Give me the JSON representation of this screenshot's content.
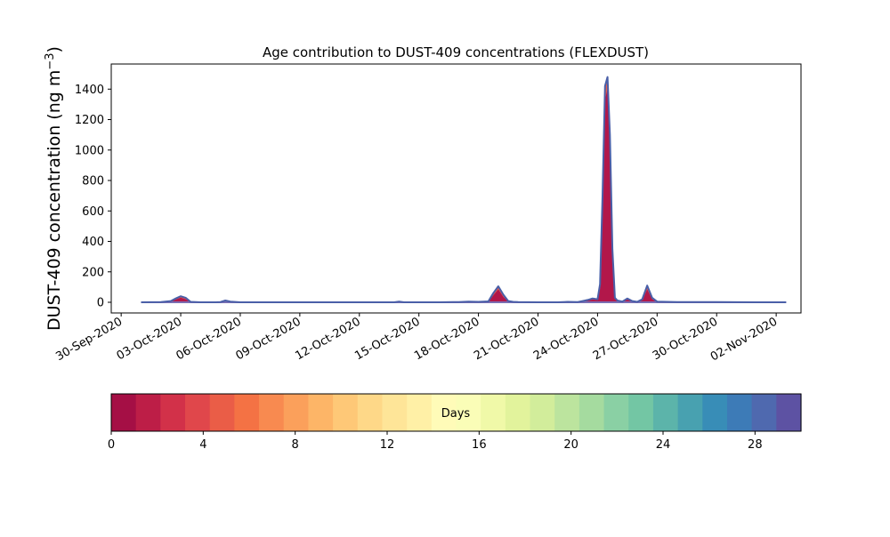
{
  "chart_data": {
    "type": "area",
    "title": "Age contribution to DUST-409 concentrations (FLEXDUST)",
    "ylabel_text": "DUST-409 concentration (ng m",
    "ylabel_unit_exponent": "−3",
    "ylabel_close": ")",
    "xlabel": "",
    "ylim": [
      -70,
      1565
    ],
    "yticks": [
      0,
      200,
      400,
      600,
      800,
      1000,
      1200,
      1400
    ],
    "xlim": [
      "2020-09-29T12:00",
      "2020-11-03T06:00"
    ],
    "xticks": [
      "30-Sep-2020",
      "03-Oct-2020",
      "06-Oct-2020",
      "09-Oct-2020",
      "12-Oct-2020",
      "15-Oct-2020",
      "18-Oct-2020",
      "21-Oct-2020",
      "24-Oct-2020",
      "27-Oct-2020",
      "30-Oct-2020",
      "02-Nov-2020"
    ],
    "xtick_dates": [
      "2020-09-30",
      "2020-10-03",
      "2020-10-06",
      "2020-10-09",
      "2020-10-12",
      "2020-10-15",
      "2020-10-18",
      "2020-10-21",
      "2020-10-24",
      "2020-10-27",
      "2020-10-30",
      "2020-11-02"
    ],
    "series_total": {
      "x": [
        "2020-10-01T00:00",
        "2020-10-02T00:00",
        "2020-10-02T12:00",
        "2020-10-02T18:00",
        "2020-10-03T00:00",
        "2020-10-03T06:00",
        "2020-10-03T12:00",
        "2020-10-04T00:00",
        "2020-10-04T18:00",
        "2020-10-05T00:00",
        "2020-10-05T06:00",
        "2020-10-05T12:00",
        "2020-10-06T00:00",
        "2020-10-08T00:00",
        "2020-10-10T00:00",
        "2020-10-12T00:00",
        "2020-10-13T18:00",
        "2020-10-14T00:00",
        "2020-10-14T06:00",
        "2020-10-16T00:00",
        "2020-10-17T00:00",
        "2020-10-17T12:00",
        "2020-10-18T00:00",
        "2020-10-18T12:00",
        "2020-10-18T18:00",
        "2020-10-19T00:00",
        "2020-10-19T06:00",
        "2020-10-19T12:00",
        "2020-10-19T18:00",
        "2020-10-20T00:00",
        "2020-10-21T00:00",
        "2020-10-22T00:00",
        "2020-10-22T12:00",
        "2020-10-23T00:00",
        "2020-10-23T06:00",
        "2020-10-23T12:00",
        "2020-10-23T18:00",
        "2020-10-24T00:00",
        "2020-10-24T03:00",
        "2020-10-24T06:00",
        "2020-10-24T09:00",
        "2020-10-24T12:00",
        "2020-10-24T15:00",
        "2020-10-24T18:00",
        "2020-10-24T21:00",
        "2020-10-25T00:00",
        "2020-10-25T06:00",
        "2020-10-25T12:00",
        "2020-10-25T18:00",
        "2020-10-26T00:00",
        "2020-10-26T06:00",
        "2020-10-26T12:00",
        "2020-10-26T18:00",
        "2020-10-27T00:00",
        "2020-10-28T00:00",
        "2020-10-30T00:00",
        "2020-11-01T00:00",
        "2020-11-02T12:00"
      ],
      "y": [
        0,
        2,
        8,
        25,
        40,
        30,
        3,
        0,
        0,
        2,
        12,
        5,
        0,
        0,
        0,
        0,
        0,
        4,
        0,
        0,
        2,
        5,
        3,
        6,
        60,
        105,
        50,
        8,
        3,
        2,
        0,
        0,
        3,
        2,
        8,
        15,
        25,
        20,
        120,
        700,
        1420,
        1480,
        1100,
        350,
        30,
        12,
        5,
        25,
        8,
        3,
        20,
        110,
        30,
        5,
        2,
        1,
        0,
        0
      ]
    },
    "series_young_fill": {
      "y": [
        0,
        1,
        5,
        18,
        30,
        20,
        2,
        0,
        0,
        1,
        8,
        3,
        0,
        0,
        0,
        0,
        0,
        2,
        0,
        0,
        1,
        3,
        2,
        4,
        45,
        85,
        35,
        5,
        2,
        1,
        0,
        0,
        2,
        1,
        5,
        10,
        18,
        15,
        90,
        580,
        1330,
        1400,
        1000,
        270,
        20,
        8,
        3,
        18,
        5,
        2,
        14,
        85,
        20,
        3,
        1,
        0,
        0,
        0
      ]
    },
    "colorbar": {
      "label": "Days",
      "vmin": 0,
      "vmax": 30,
      "ticks": [
        0,
        4,
        8,
        12,
        16,
        20,
        24,
        28
      ],
      "colors": [
        "#a50f45",
        "#bd1e47",
        "#d23149",
        "#e0474b",
        "#ea5d47",
        "#f47244",
        "#f88a50",
        "#fba05b",
        "#fdb567",
        "#fec877",
        "#fed888",
        "#fee598",
        "#fff0a6",
        "#fffbb8",
        "#fafdb7",
        "#f0f9a8",
        "#e2f39c",
        "#d2ed9b",
        "#bce49e",
        "#a5db9f",
        "#8ad0a4",
        "#73c6a4",
        "#5cb4aa",
        "#48a1b0",
        "#388db7",
        "#3d7bb7",
        "#4f69af",
        "#5d52a3"
      ]
    },
    "line_color": "#4a5fa8",
    "base_line_color": "#7a6fb3",
    "fill_light": "#e35f50",
    "fill_dark": "#b2174a",
    "legend": "none",
    "grid": false
  }
}
